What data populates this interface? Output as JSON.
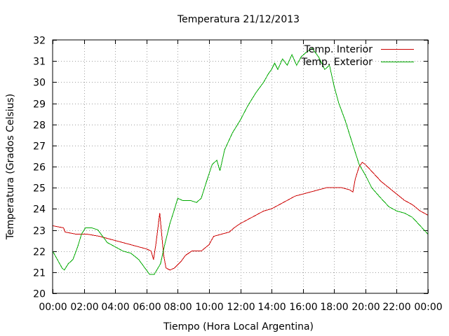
{
  "chart_data": {
    "type": "line",
    "title": "Temperatura 21/12/2013",
    "xlabel": "Tiempo (Hora Local Argentina)",
    "ylabel": "Temperatura (Grados Celsius)",
    "xlim": [
      0,
      24
    ],
    "ylim": [
      20,
      32
    ],
    "x_ticks": [
      {
        "value": 0,
        "label": "00:00"
      },
      {
        "value": 2,
        "label": "02:00"
      },
      {
        "value": 4,
        "label": "04:00"
      },
      {
        "value": 6,
        "label": "06:00"
      },
      {
        "value": 8,
        "label": "08:00"
      },
      {
        "value": 10,
        "label": "10:00"
      },
      {
        "value": 12,
        "label": "12:00"
      },
      {
        "value": 14,
        "label": "14:00"
      },
      {
        "value": 16,
        "label": "16:00"
      },
      {
        "value": 18,
        "label": "18:00"
      },
      {
        "value": 20,
        "label": "20:00"
      },
      {
        "value": 22,
        "label": "22:00"
      },
      {
        "value": 24,
        "label": "00:00"
      }
    ],
    "y_ticks": [
      {
        "value": 20,
        "label": "20"
      },
      {
        "value": 21,
        "label": "21"
      },
      {
        "value": 22,
        "label": "22"
      },
      {
        "value": 23,
        "label": "23"
      },
      {
        "value": 24,
        "label": "24"
      },
      {
        "value": 25,
        "label": "25"
      },
      {
        "value": 26,
        "label": "26"
      },
      {
        "value": 27,
        "label": "27"
      },
      {
        "value": 28,
        "label": "28"
      },
      {
        "value": 29,
        "label": "29"
      },
      {
        "value": 30,
        "label": "30"
      },
      {
        "value": 31,
        "label": "31"
      },
      {
        "value": 32,
        "label": "32"
      }
    ],
    "grid": true,
    "legend_position": "top-right",
    "series": [
      {
        "name": "Temp. Interior",
        "color": "#cc0000",
        "points": [
          [
            0.0,
            23.2
          ],
          [
            0.7,
            23.1
          ],
          [
            0.8,
            22.9
          ],
          [
            1.5,
            22.8
          ],
          [
            2.2,
            22.8
          ],
          [
            3.0,
            22.7
          ],
          [
            3.5,
            22.6
          ],
          [
            4.0,
            22.5
          ],
          [
            5.0,
            22.3
          ],
          [
            5.5,
            22.2
          ],
          [
            6.0,
            22.1
          ],
          [
            6.3,
            22.0
          ],
          [
            6.45,
            21.6
          ],
          [
            6.6,
            22.3
          ],
          [
            6.75,
            23.2
          ],
          [
            6.85,
            23.8
          ],
          [
            6.95,
            23.0
          ],
          [
            7.1,
            21.8
          ],
          [
            7.25,
            21.2
          ],
          [
            7.5,
            21.1
          ],
          [
            7.8,
            21.2
          ],
          [
            8.2,
            21.5
          ],
          [
            8.5,
            21.8
          ],
          [
            8.9,
            22.0
          ],
          [
            9.5,
            22.0
          ],
          [
            10.0,
            22.3
          ],
          [
            10.3,
            22.7
          ],
          [
            10.8,
            22.8
          ],
          [
            11.3,
            22.9
          ],
          [
            11.6,
            23.1
          ],
          [
            12.0,
            23.3
          ],
          [
            12.5,
            23.5
          ],
          [
            13.0,
            23.7
          ],
          [
            13.5,
            23.9
          ],
          [
            14.0,
            24.0
          ],
          [
            14.5,
            24.2
          ],
          [
            15.0,
            24.4
          ],
          [
            15.5,
            24.6
          ],
          [
            16.0,
            24.7
          ],
          [
            16.5,
            24.8
          ],
          [
            17.0,
            24.9
          ],
          [
            17.5,
            25.0
          ],
          [
            18.0,
            25.0
          ],
          [
            18.5,
            25.0
          ],
          [
            19.0,
            24.9
          ],
          [
            19.2,
            24.8
          ],
          [
            19.35,
            25.4
          ],
          [
            19.6,
            26.0
          ],
          [
            19.8,
            26.2
          ],
          [
            20.0,
            26.1
          ],
          [
            20.5,
            25.7
          ],
          [
            21.0,
            25.3
          ],
          [
            21.5,
            25.0
          ],
          [
            22.0,
            24.7
          ],
          [
            22.5,
            24.4
          ],
          [
            23.0,
            24.2
          ],
          [
            23.5,
            23.9
          ],
          [
            24.0,
            23.7
          ]
        ]
      },
      {
        "name": "Temp. Exterior",
        "color": "#00aa00",
        "points": [
          [
            0.0,
            22.0
          ],
          [
            0.3,
            21.6
          ],
          [
            0.6,
            21.2
          ],
          [
            0.75,
            21.1
          ],
          [
            1.0,
            21.4
          ],
          [
            1.3,
            21.6
          ],
          [
            1.6,
            22.2
          ],
          [
            1.85,
            22.8
          ],
          [
            2.1,
            23.1
          ],
          [
            2.5,
            23.1
          ],
          [
            2.9,
            23.0
          ],
          [
            3.2,
            22.7
          ],
          [
            3.5,
            22.4
          ],
          [
            4.0,
            22.2
          ],
          [
            4.5,
            22.0
          ],
          [
            5.0,
            21.9
          ],
          [
            5.5,
            21.6
          ],
          [
            5.9,
            21.2
          ],
          [
            6.2,
            20.9
          ],
          [
            6.5,
            20.9
          ],
          [
            6.9,
            21.4
          ],
          [
            7.2,
            22.4
          ],
          [
            7.5,
            23.3
          ],
          [
            7.8,
            24.0
          ],
          [
            8.0,
            24.5
          ],
          [
            8.3,
            24.4
          ],
          [
            8.8,
            24.4
          ],
          [
            9.2,
            24.3
          ],
          [
            9.5,
            24.5
          ],
          [
            9.8,
            25.2
          ],
          [
            10.2,
            26.1
          ],
          [
            10.5,
            26.3
          ],
          [
            10.7,
            25.8
          ],
          [
            11.0,
            26.8
          ],
          [
            11.5,
            27.6
          ],
          [
            12.0,
            28.2
          ],
          [
            12.5,
            28.9
          ],
          [
            13.0,
            29.5
          ],
          [
            13.5,
            30.0
          ],
          [
            13.8,
            30.4
          ],
          [
            14.0,
            30.6
          ],
          [
            14.2,
            30.9
          ],
          [
            14.4,
            30.6
          ],
          [
            14.7,
            31.1
          ],
          [
            15.0,
            30.8
          ],
          [
            15.3,
            31.3
          ],
          [
            15.6,
            30.8
          ],
          [
            15.9,
            31.2
          ],
          [
            16.2,
            31.4
          ],
          [
            16.6,
            31.6
          ],
          [
            17.0,
            31.2
          ],
          [
            17.4,
            30.6
          ],
          [
            17.7,
            30.8
          ],
          [
            18.0,
            29.8
          ],
          [
            18.3,
            29.0
          ],
          [
            18.7,
            28.2
          ],
          [
            19.0,
            27.5
          ],
          [
            19.3,
            26.8
          ],
          [
            19.6,
            26.1
          ],
          [
            20.0,
            25.6
          ],
          [
            20.4,
            25.0
          ],
          [
            21.0,
            24.5
          ],
          [
            21.5,
            24.1
          ],
          [
            22.0,
            23.9
          ],
          [
            22.5,
            23.8
          ],
          [
            23.0,
            23.6
          ],
          [
            23.5,
            23.2
          ],
          [
            24.0,
            22.8
          ]
        ]
      }
    ]
  }
}
